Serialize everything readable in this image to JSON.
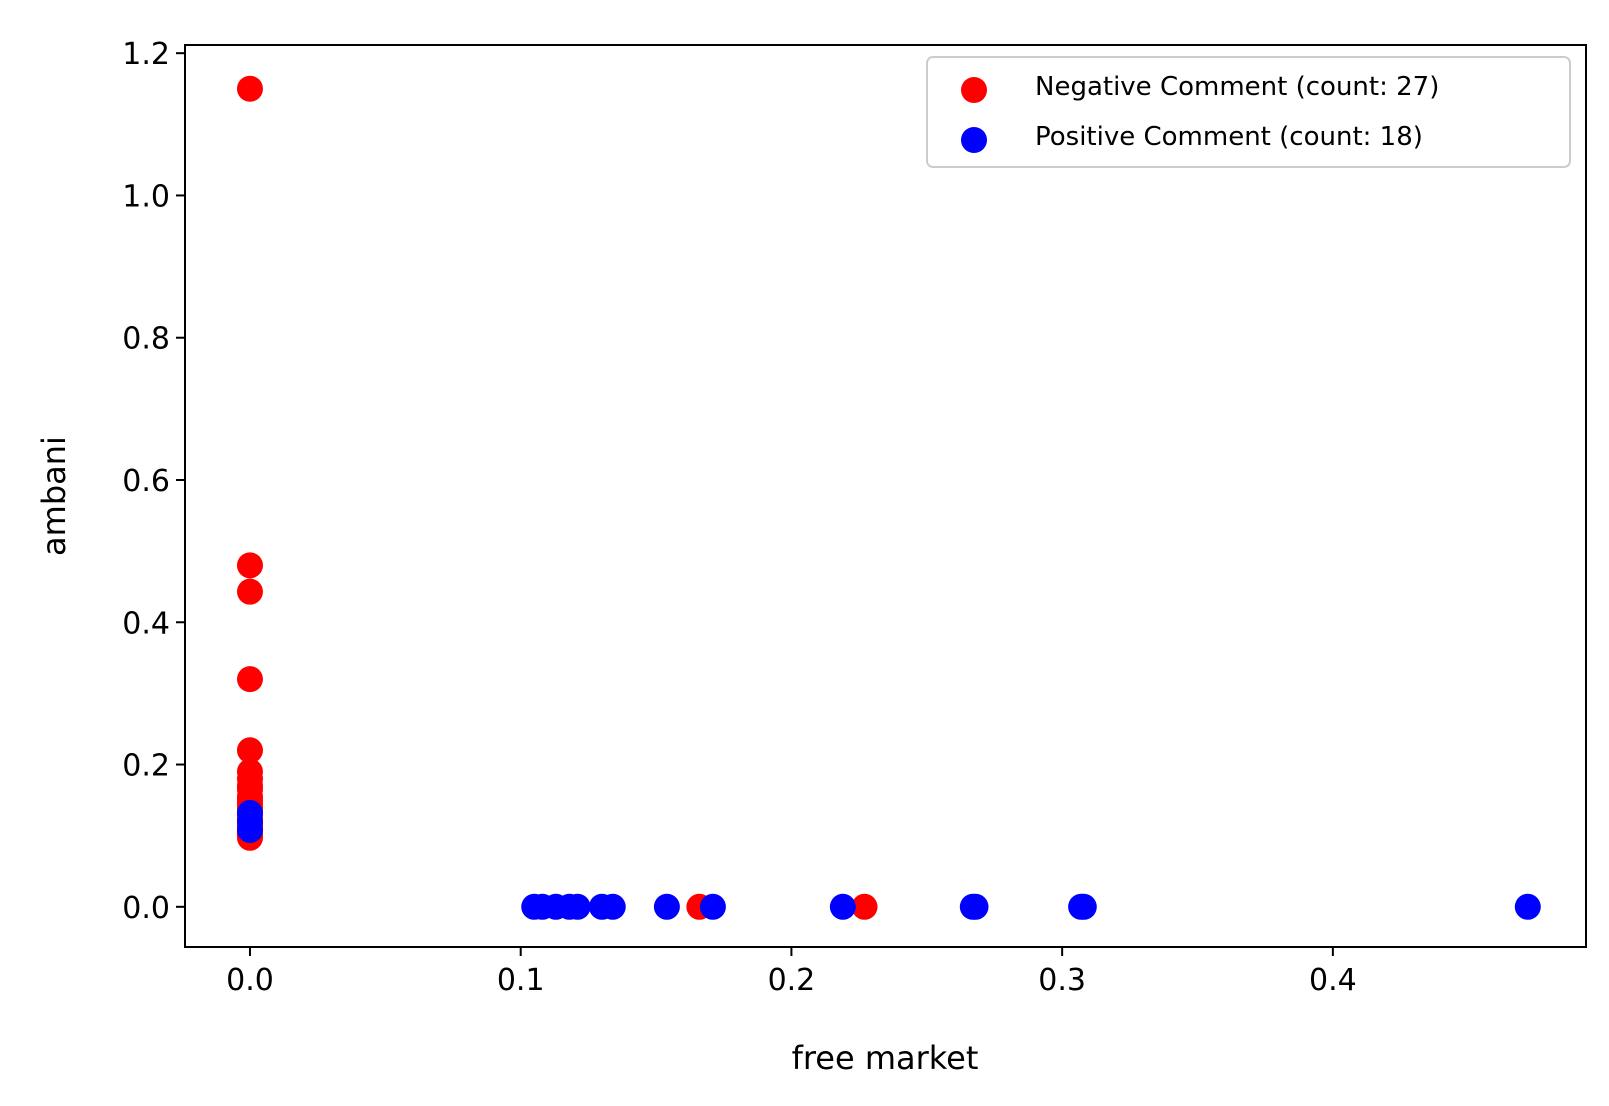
{
  "chart_data": {
    "type": "scatter",
    "xlabel": "free market",
    "ylabel": "ambani",
    "xlim": [
      -0.024,
      0.4935
    ],
    "ylim": [
      -0.0565,
      1.2115
    ],
    "xticks": [
      {
        "value": 0.0,
        "label": "0.0"
      },
      {
        "value": 0.1,
        "label": "0.1"
      },
      {
        "value": 0.2,
        "label": "0.2"
      },
      {
        "value": 0.3,
        "label": "0.3"
      },
      {
        "value": 0.4,
        "label": "0.4"
      }
    ],
    "yticks": [
      {
        "value": 0.0,
        "label": "0.0"
      },
      {
        "value": 0.2,
        "label": "0.2"
      },
      {
        "value": 0.4,
        "label": "0.4"
      },
      {
        "value": 0.6,
        "label": "0.6"
      },
      {
        "value": 0.8,
        "label": "0.8"
      },
      {
        "value": 1.0,
        "label": "1.0"
      },
      {
        "value": 1.2,
        "label": "1.2"
      }
    ],
    "grid": false,
    "legend_position": "top-right",
    "series": [
      {
        "name": "Negative Comment (count: 27)",
        "color": "#ff0000",
        "x": [
          0.0,
          0.0,
          0.0,
          0.0,
          0.0,
          0.0,
          0.0,
          0.0,
          0.0,
          0.0,
          0.0,
          0.0,
          0.0,
          0.0,
          0.0,
          0.0,
          0.0,
          0.0,
          0.0,
          0.0,
          0.0,
          0.0,
          0.0,
          0.0,
          0.0,
          0.166,
          0.227
        ],
        "y": [
          1.15,
          0.48,
          0.443,
          0.32,
          0.22,
          0.19,
          0.18,
          0.17,
          0.165,
          0.155,
          0.15,
          0.145,
          0.14,
          0.135,
          0.13,
          0.125,
          0.12,
          0.118,
          0.115,
          0.112,
          0.11,
          0.105,
          0.102,
          0.1,
          0.097,
          0.0,
          0.0
        ]
      },
      {
        "name": "Positive Comment (count: 18)",
        "color": "#0000ff",
        "x": [
          0.0,
          0.0,
          0.0,
          0.105,
          0.108,
          0.113,
          0.118,
          0.121,
          0.13,
          0.134,
          0.154,
          0.171,
          0.219,
          0.267,
          0.268,
          0.307,
          0.308,
          0.472
        ],
        "y": [
          0.132,
          0.12,
          0.108,
          0.0,
          0.0,
          0.0,
          0.0,
          0.0,
          0.0,
          0.0,
          0.0,
          0.0,
          0.0,
          0.0,
          0.0,
          0.0,
          0.0,
          0.0
        ]
      }
    ]
  }
}
